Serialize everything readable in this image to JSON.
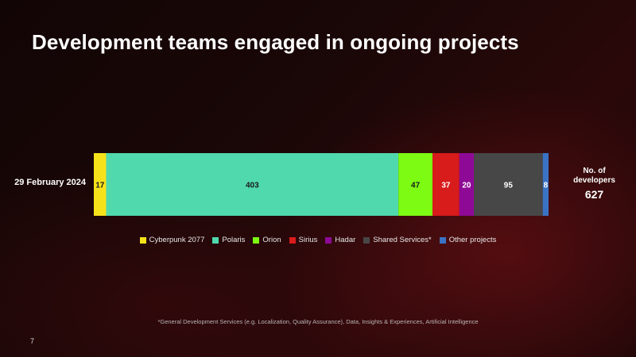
{
  "title": "Development teams engaged in ongoing projects",
  "total": {
    "label": "No. of\ndevelopers",
    "value": "627"
  },
  "footnote": "*General Development Services (e.g. Localization, Quality Assurance), Data, Insights & Experiences, Artificial Intelligence",
  "page_number": "7",
  "chart_data": {
    "type": "bar",
    "orientation": "horizontal",
    "stacked": true,
    "categories": [
      "29 February 2024"
    ],
    "series": [
      {
        "name": "Cyberpunk 2077",
        "values": [
          17
        ],
        "color": "#f6e21b",
        "label_color": "#1a1a1a"
      },
      {
        "name": "Polaris",
        "values": [
          403
        ],
        "color": "#4fd9ad",
        "label_color": "#1a1a1a"
      },
      {
        "name": "Orion",
        "values": [
          47
        ],
        "color": "#7dfb12",
        "label_color": "#1a1a1a"
      },
      {
        "name": "Sirius",
        "values": [
          37
        ],
        "color": "#d81b1b",
        "label_color": "#ffffff"
      },
      {
        "name": "Hadar",
        "values": [
          20
        ],
        "color": "#8e0a96",
        "label_color": "#ffffff"
      },
      {
        "name": "Shared Services*",
        "values": [
          95
        ],
        "color": "#474747",
        "label_color": "#ffffff"
      },
      {
        "name": "Other projects",
        "values": [
          8
        ],
        "color": "#3a73c4",
        "label_color": "#ffffff"
      }
    ],
    "xlim": [
      0,
      627
    ],
    "legend_position": "bottom",
    "grid": false
  }
}
